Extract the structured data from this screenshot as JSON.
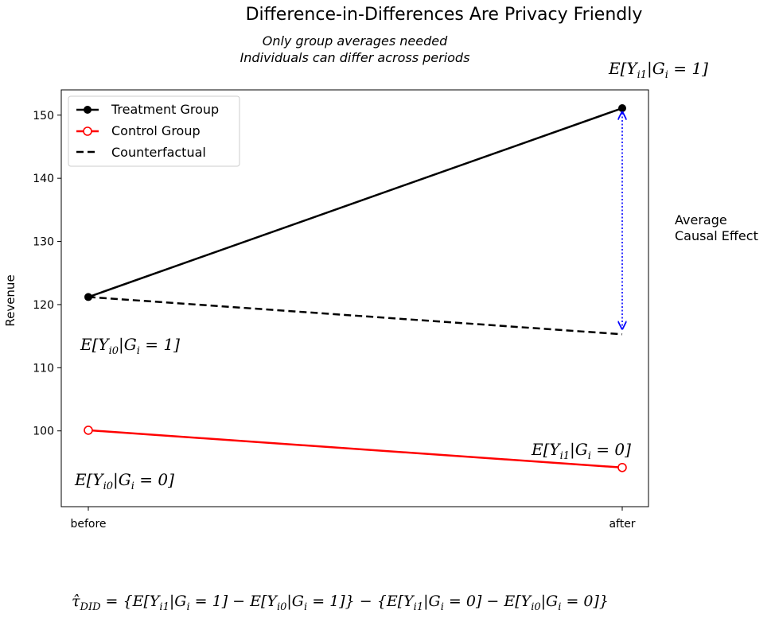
{
  "chart_data": {
    "type": "line",
    "title": "Difference-in-Differences Are Privacy Friendly",
    "subtitle_lines": [
      "Only group averages needed",
      "Individuals can differ across periods"
    ],
    "xlabel": "",
    "ylabel": "Revenue",
    "categories": [
      "before",
      "after"
    ],
    "ylim": [
      88,
      154
    ],
    "yticks": [
      100,
      110,
      120,
      130,
      140,
      150
    ],
    "grid": false,
    "legend_position": "top-left",
    "series": [
      {
        "name": "Treatment Group",
        "values": [
          121.2,
          151.1
        ],
        "color": "#000000",
        "marker": "filled-circle",
        "style": "solid"
      },
      {
        "name": "Control Group",
        "values": [
          100.1,
          94.2
        ],
        "color": "#ff0000",
        "marker": "open-circle",
        "style": "solid"
      },
      {
        "name": "Counterfactual",
        "values": [
          121.2,
          115.3
        ],
        "color": "#000000",
        "marker": "none",
        "style": "dashed"
      }
    ],
    "effect_arrow": {
      "x": "after",
      "from": 115.3,
      "to": 151.1,
      "color": "#0000ff",
      "label_lines": [
        "Average",
        "Causal Effect"
      ]
    },
    "annotations": {
      "treat_after": "E[Y_{i1}|G_i = 1]",
      "treat_before": "E[Y_{i0}|G_i = 1]",
      "control_after": "E[Y_{i1}|G_i = 0]",
      "control_before": "E[Y_{i0}|G_i = 0]"
    },
    "formula": "τ̂_DID = {E[Y_i1|G_i = 1] − E[Y_i0|G_i = 1]} − {E[Y_i1|G_i = 0] − E[Y_i0|G_i = 0]}"
  }
}
